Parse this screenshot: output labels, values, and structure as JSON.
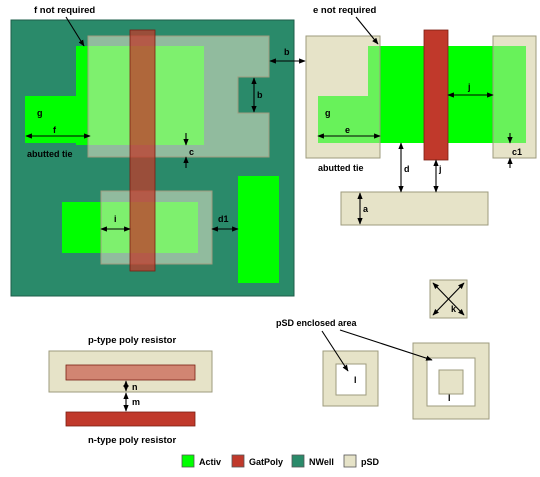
{
  "annotations": {
    "f_not_required": "f not required",
    "e_not_required": "e not required",
    "abutted_tie_left": "abutted tie",
    "abutted_tie_right": "abutted tie",
    "p_type_poly_resistor": "p-type poly resistor",
    "n_type_poly_resistor": "n-type poly resistor",
    "psd_enclosed_area": "pSD enclosed area"
  },
  "rule_letters": {
    "b_between": "b",
    "b_notch": "b",
    "c": "c",
    "c1": "c1",
    "d": "d",
    "d1": "d1",
    "a": "a",
    "e": "e",
    "f": "f",
    "g_left": "g",
    "g_right": "g",
    "i": "i",
    "j_upper": "j",
    "j_lower": "j",
    "k": "k",
    "l_small": "l",
    "l_large": "l",
    "m": "m",
    "n": "n"
  },
  "legend": [
    {
      "label": "Activ",
      "color": "#00ff00"
    },
    {
      "label": "GatPoly",
      "color": "#c0392b"
    },
    {
      "label": "NWell",
      "color": "#2a8a6a"
    },
    {
      "label": "pSD",
      "color": "#e6e3c8"
    }
  ],
  "colors": {
    "activ": "#00ff00",
    "gatpoly": "#c0392b",
    "nwell": "#2a8a6a",
    "psd": "#e6e3c8",
    "psd_border": "#9e9b7e"
  }
}
